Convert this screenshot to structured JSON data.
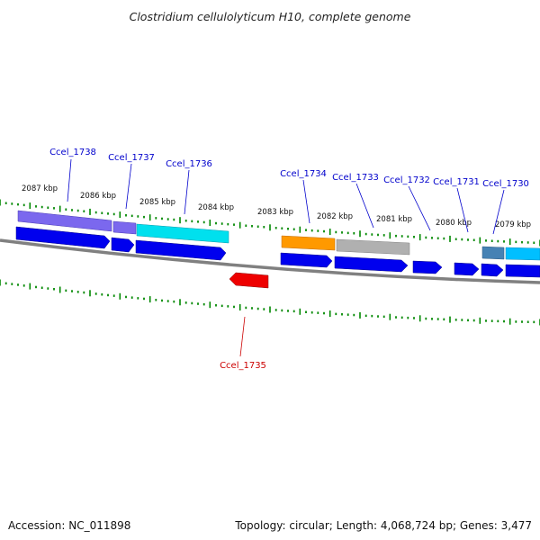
{
  "title": "Clostridium cellulolyticum H10, complete genome",
  "footer": {
    "accession": "Accession: NC_011898",
    "stats": "Topology: circular; Length: 4,068,724 bp; Genes: 3,477"
  },
  "scale_labels": [
    "2087 kbp",
    "2086 kbp",
    "2085 kbp",
    "2084 kbp",
    "2083 kbp",
    "2082 kbp",
    "2081 kbp",
    "2080 kbp",
    "2079 kbp"
  ],
  "genes": [
    {
      "id": "Ccel_1738",
      "strand": "forward",
      "color": "#0000ee",
      "label_color": "#0000cc"
    },
    {
      "id": "Ccel_1737",
      "strand": "forward",
      "color": "#0000ee",
      "label_color": "#0000cc"
    },
    {
      "id": "Ccel_1736",
      "strand": "forward",
      "color": "#0000ee",
      "label_color": "#0000cc"
    },
    {
      "id": "Ccel_1735",
      "strand": "reverse",
      "color": "#ee0000",
      "label_color": "#cc0000"
    },
    {
      "id": "Ccel_1734",
      "strand": "forward",
      "color": "#0000ee",
      "label_color": "#0000cc"
    },
    {
      "id": "Ccel_1733",
      "strand": "forward",
      "color": "#0000ee",
      "label_color": "#0000cc"
    },
    {
      "id": "Ccel_1732",
      "strand": "forward",
      "color": "#0000ee",
      "label_color": "#0000cc"
    },
    {
      "id": "Ccel_1731",
      "strand": "forward",
      "color": "#0000ee",
      "label_color": "#0000cc"
    },
    {
      "id": "Ccel_1730",
      "strand": "forward",
      "color": "#0000ee",
      "label_color": "#0000cc"
    }
  ],
  "feature_colors": {
    "purple": "#7b68ee",
    "cyan": "#00e0ee",
    "orange": "#ff9900",
    "gray": "#b0b0b0",
    "steelblue": "#4682b4",
    "skyblue": "#00bfff",
    "tick": "#008800",
    "backbone": "#808080"
  }
}
